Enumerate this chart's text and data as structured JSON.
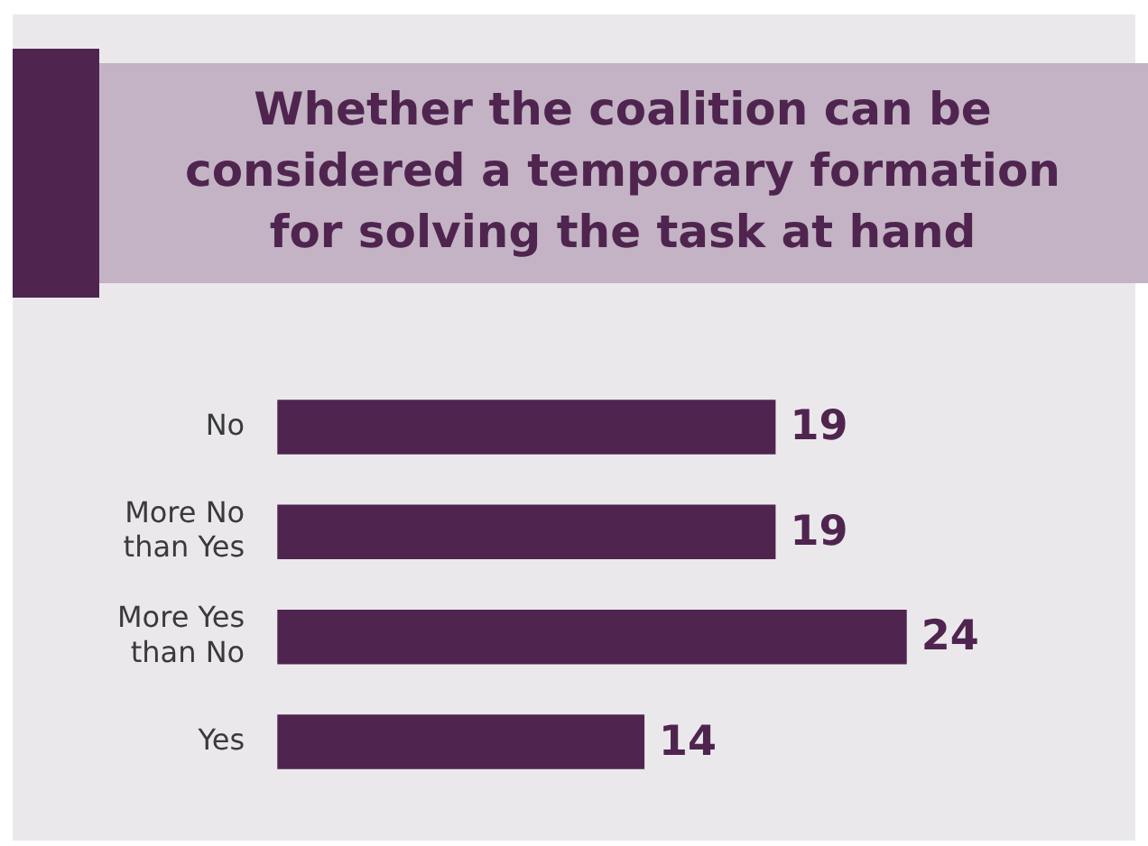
{
  "chart_data": {
    "type": "bar",
    "orientation": "horizontal",
    "title": "Whether the coalition can be considered a temporary formation for solving the task at hand",
    "categories": [
      "No",
      "More No than Yes",
      "More Yes than No",
      "Yes"
    ],
    "values": [
      19,
      19,
      24,
      14
    ],
    "color": "#4f2550",
    "data_labels": true,
    "grid": false,
    "legend": false
  }
}
